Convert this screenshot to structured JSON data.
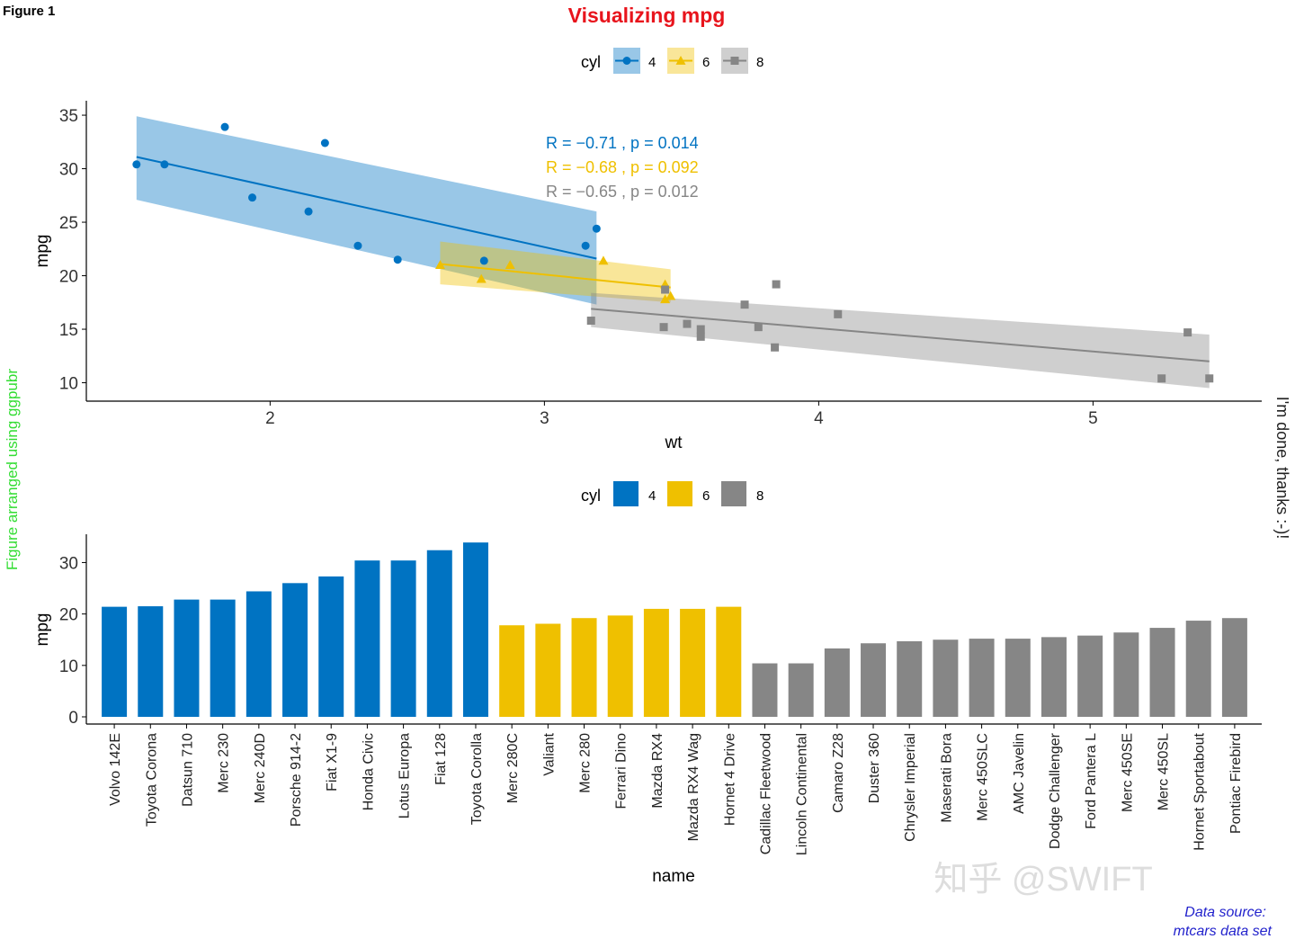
{
  "figure_label": "Figure 1",
  "title": "Visualizing mpg",
  "left_caption": "Figure arranged using ggpubr",
  "right_caption": "I'm done, thanks :-)!",
  "source_line1": "Data source:",
  "source_line2": "mtcars data set",
  "watermark": "知乎 @SWIFT",
  "colors": {
    "4": "#0073C2",
    "6": "#EFC000",
    "8": "#868686",
    "title": "#e8141c",
    "left_caption": "#33dd33",
    "source": "#2222cc"
  },
  "legend": {
    "title": "cyl",
    "levels": [
      "4",
      "6",
      "8"
    ]
  },
  "chart_data": [
    {
      "type": "scatter",
      "xlabel": "wt",
      "ylabel": "mpg",
      "xlim": [
        1.33,
        5.615
      ],
      "ylim": [
        8.28,
        36.35
      ],
      "xticks": [
        2,
        3,
        4,
        5
      ],
      "yticks": [
        10,
        15,
        20,
        25,
        30,
        35
      ],
      "grid": false,
      "legend_position": "top",
      "annotations": [
        "R = −0.71 , p = 0.014",
        "R = −0.68 , p = 0.092",
        "R = −0.65 , p = 0.012"
      ],
      "series": [
        {
          "name": "4",
          "marker": "circle",
          "points": [
            [
              2.32,
              22.8
            ],
            [
              3.19,
              24.4
            ],
            [
              3.15,
              22.8
            ],
            [
              2.2,
              32.4
            ],
            [
              1.615,
              30.4
            ],
            [
              1.835,
              33.9
            ],
            [
              2.465,
              21.5
            ],
            [
              1.935,
              27.3
            ],
            [
              2.14,
              26.0
            ],
            [
              1.513,
              30.4
            ],
            [
              2.78,
              21.4
            ]
          ],
          "fit": {
            "x": [
              1.513,
              3.19
            ],
            "y": [
              31.1,
              21.6
            ],
            "lower": [
              27.1,
              17.3
            ],
            "upper": [
              34.9,
              26.0
            ]
          }
        },
        {
          "name": "6",
          "marker": "triangle",
          "points": [
            [
              2.62,
              21.0
            ],
            [
              2.875,
              21.0
            ],
            [
              3.215,
              21.4
            ],
            [
              3.46,
              18.1
            ],
            [
              3.44,
              19.2
            ],
            [
              3.44,
              17.8
            ],
            [
              2.77,
              19.7
            ]
          ],
          "fit": {
            "x": [
              2.62,
              3.46
            ],
            "y": [
              21.1,
              18.9
            ],
            "lower": [
              19.2,
              17.5
            ],
            "upper": [
              23.2,
              20.6
            ]
          }
        },
        {
          "name": "8",
          "marker": "square",
          "points": [
            [
              3.44,
              18.7
            ],
            [
              3.57,
              14.3
            ],
            [
              4.07,
              16.4
            ],
            [
              3.73,
              17.3
            ],
            [
              3.78,
              15.2
            ],
            [
              5.25,
              10.4
            ],
            [
              5.424,
              10.4
            ],
            [
              5.345,
              14.7
            ],
            [
              3.52,
              15.5
            ],
            [
              3.435,
              15.2
            ],
            [
              3.84,
              13.3
            ],
            [
              3.17,
              15.8
            ],
            [
              3.57,
              15.0
            ],
            [
              3.845,
              19.2
            ]
          ],
          "fit": {
            "x": [
              3.17,
              5.424
            ],
            "y": [
              16.9,
              12.0
            ],
            "lower": [
              15.2,
              9.5
            ],
            "upper": [
              18.4,
              14.5
            ]
          }
        }
      ]
    },
    {
      "type": "bar",
      "xlabel": "name",
      "ylabel": "mpg",
      "ylim": [
        0,
        35.5
      ],
      "yticks": [
        0,
        10,
        20,
        30
      ],
      "grid": false,
      "legend_position": "top",
      "categories": [
        "Volvo 142E",
        "Toyota Corona",
        "Datsun 710",
        "Merc 230",
        "Merc 240D",
        "Porsche 914-2",
        "Fiat X1-9",
        "Honda Civic",
        "Lotus Europa",
        "Fiat 128",
        "Toyota Corolla",
        "Merc 280C",
        "Valiant",
        "Merc 280",
        "Ferrari Dino",
        "Mazda RX4",
        "Mazda RX4 Wag",
        "Hornet 4 Drive",
        "Cadillac Fleetwood",
        "Lincoln Continental",
        "Camaro Z28",
        "Duster 360",
        "Chrysler Imperial",
        "Maserati Bora",
        "Merc 450SLC",
        "AMC Javelin",
        "Dodge Challenger",
        "Ford Pantera L",
        "Merc 450SE",
        "Merc 450SL",
        "Hornet Sportabout",
        "Pontiac Firebird"
      ],
      "values": [
        21.4,
        21.5,
        22.8,
        22.8,
        24.4,
        26.0,
        27.3,
        30.4,
        30.4,
        32.4,
        33.9,
        17.8,
        18.1,
        19.2,
        19.7,
        21.0,
        21.0,
        21.4,
        10.4,
        10.4,
        13.3,
        14.3,
        14.7,
        15.0,
        15.2,
        15.2,
        15.5,
        15.8,
        16.4,
        17.3,
        18.7,
        19.2
      ],
      "groups": [
        "4",
        "4",
        "4",
        "4",
        "4",
        "4",
        "4",
        "4",
        "4",
        "4",
        "4",
        "6",
        "6",
        "6",
        "6",
        "6",
        "6",
        "6",
        "8",
        "8",
        "8",
        "8",
        "8",
        "8",
        "8",
        "8",
        "8",
        "8",
        "8",
        "8",
        "8",
        "8"
      ]
    }
  ]
}
